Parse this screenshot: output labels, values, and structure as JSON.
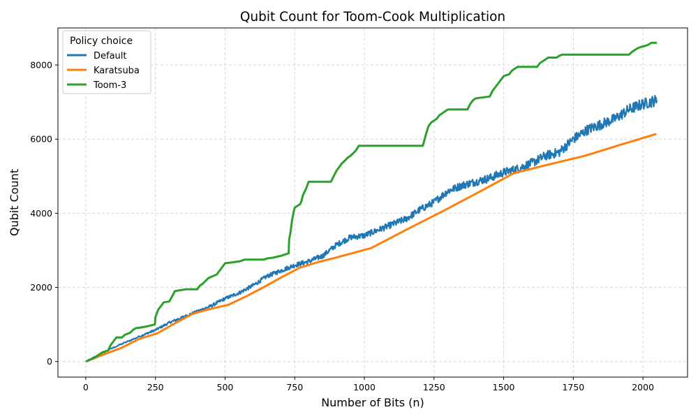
{
  "chart_data": {
    "type": "line",
    "title": "Qubit Count for Toom-Cook Multiplication",
    "xlabel": "Number of Bits (n)",
    "ylabel": "Qubit Count",
    "xlim": [
      -100,
      2160
    ],
    "ylim": [
      -420,
      9000
    ],
    "xticks": [
      0,
      250,
      500,
      750,
      1000,
      1250,
      1500,
      1750,
      2000
    ],
    "yticks": [
      0,
      2000,
      4000,
      6000,
      8000
    ],
    "grid": true,
    "legend": {
      "title": "Policy choice",
      "placement": "top-left",
      "entries": [
        "Default",
        "Karatsuba",
        "Toom-3"
      ]
    },
    "series": [
      {
        "name": "Default",
        "color": "#1f77b4",
        "noisy": true,
        "x": [
          0,
          100,
          200,
          250,
          300,
          350,
          400,
          450,
          500,
          550,
          600,
          650,
          700,
          750,
          800,
          850,
          900,
          950,
          1000,
          1050,
          1100,
          1150,
          1200,
          1250,
          1300,
          1350,
          1400,
          1450,
          1500,
          1550,
          1600,
          1650,
          1700,
          1750,
          1800,
          1850,
          1900,
          1950,
          2000,
          2050
        ],
        "y": [
          0,
          380,
          700,
          850,
          1050,
          1200,
          1350,
          1500,
          1700,
          1850,
          2050,
          2300,
          2450,
          2600,
          2700,
          2850,
          3150,
          3350,
          3400,
          3550,
          3700,
          3850,
          4100,
          4300,
          4600,
          4750,
          4850,
          4950,
          5100,
          5200,
          5350,
          5550,
          5650,
          6000,
          6250,
          6400,
          6550,
          6800,
          6950,
          7050
        ]
      },
      {
        "name": "Karatsuba",
        "color": "#ff7f0e",
        "noisy": false,
        "x": [
          0,
          64,
          128,
          192,
          256,
          320,
          384,
          448,
          512,
          576,
          640,
          704,
          768,
          832,
          896,
          960,
          1024,
          1152,
          1280,
          1408,
          1536,
          1664,
          1792,
          1920,
          2048
        ],
        "y": [
          0,
          190,
          370,
          610,
          760,
          1030,
          1290,
          1420,
          1530,
          1760,
          2010,
          2280,
          2530,
          2680,
          2800,
          2930,
          3060,
          3560,
          4050,
          4560,
          5080,
          5320,
          5550,
          5850,
          6140
        ]
      },
      {
        "name": "Toom-3",
        "color": "#2ca02c",
        "noisy": false,
        "x": [
          0,
          30,
          50,
          60,
          80,
          90,
          100,
          110,
          130,
          140,
          160,
          170,
          180,
          200,
          220,
          248,
          250,
          260,
          270,
          280,
          300,
          320,
          360,
          400,
          410,
          420,
          440,
          470,
          480,
          490,
          500,
          550,
          560,
          570,
          640,
          650,
          670,
          700,
          720,
          728,
          730,
          735,
          740,
          745,
          750,
          760,
          770,
          775,
          780,
          790,
          800,
          880,
          890,
          900,
          910,
          920,
          930,
          940,
          950,
          960,
          970,
          980,
          1210,
          1220,
          1230,
          1240,
          1250,
          1260,
          1270,
          1280,
          1290,
          1300,
          1370,
          1380,
          1390,
          1400,
          1450,
          1460,
          1470,
          1480,
          1490,
          1500,
          1520,
          1530,
          1540,
          1550,
          1560,
          1620,
          1630,
          1640,
          1650,
          1660,
          1690,
          1700,
          1710,
          1720,
          1940,
          1950,
          1960,
          1970,
          1980,
          1990,
          2000,
          2010,
          2020,
          2030,
          2050
        ],
        "y": [
          0,
          100,
          200,
          250,
          300,
          450,
          550,
          650,
          650,
          720,
          780,
          860,
          900,
          920,
          950,
          1000,
          1200,
          1400,
          1500,
          1600,
          1620,
          1900,
          1950,
          1950,
          2050,
          2100,
          2250,
          2350,
          2450,
          2550,
          2650,
          2700,
          2720,
          2750,
          2750,
          2780,
          2800,
          2850,
          2900,
          2920,
          3300,
          3500,
          3800,
          4000,
          4150,
          4200,
          4250,
          4350,
          4500,
          4650,
          4850,
          4850,
          5000,
          5150,
          5250,
          5350,
          5420,
          5500,
          5550,
          5620,
          5700,
          5820,
          5820,
          6100,
          6350,
          6450,
          6500,
          6550,
          6650,
          6700,
          6750,
          6800,
          6800,
          6950,
          7050,
          7100,
          7150,
          7300,
          7400,
          7500,
          7600,
          7700,
          7750,
          7850,
          7900,
          7950,
          7950,
          7950,
          8050,
          8100,
          8150,
          8200,
          8200,
          8250,
          8280,
          8280,
          8280,
          8280,
          8350,
          8400,
          8450,
          8480,
          8500,
          8520,
          8550,
          8600,
          8600
        ]
      }
    ]
  }
}
